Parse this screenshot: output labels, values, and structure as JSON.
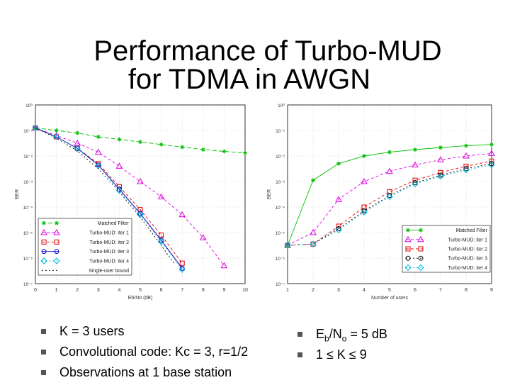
{
  "slide": {
    "title_line1": "Performance of Turbo-MUD",
    "title_line2": "for TDMA in AWGN"
  },
  "bullets_left": [
    "K = 3 users",
    "Convolutional code: Kc = 3, r=1/2",
    "Observations at 1 base station"
  ],
  "bullets_right": {
    "eb": "E",
    "eb_sub": "b",
    "slash": "/N",
    "no_sub": "o",
    "eq": " = 5 dB",
    "k_range": "1 ≤ K ≤ 9"
  },
  "chart_data": [
    {
      "type": "line",
      "ylog": true,
      "xlabel": "Eb/No (dB)",
      "ylabel": "BER",
      "xlim": [
        0,
        10
      ],
      "ylim_exp": [
        -7,
        0
      ],
      "xticks": [
        "0",
        "1",
        "2",
        "3",
        "4",
        "5",
        "6",
        "7",
        "8",
        "9",
        "10"
      ],
      "yticks": [
        "10⁰",
        "10⁻¹",
        "10⁻²",
        "10⁻³",
        "10⁻⁴",
        "10⁻⁵",
        "10⁻⁶",
        "10⁻⁷"
      ],
      "legend_position": "bottom-left",
      "series": [
        {
          "name": "Matched Filter",
          "color": "#00c000",
          "marker": "star",
          "dash": "6,3",
          "x": [
            0,
            1,
            2,
            3,
            4,
            5,
            6,
            7,
            8,
            9,
            10
          ],
          "y": [
            -0.9,
            -1.0,
            -1.1,
            -1.25,
            -1.35,
            -1.45,
            -1.55,
            -1.65,
            -1.75,
            -1.82,
            -1.88
          ]
        },
        {
          "name": "Turbo-MUD: iter 1",
          "color": "#e000e0",
          "marker": "triangle",
          "dash": "4,3",
          "x": [
            0,
            1,
            2,
            3,
            4,
            5,
            6,
            7,
            8,
            9
          ],
          "y": [
            -0.9,
            -1.2,
            -1.5,
            -1.85,
            -2.4,
            -3.0,
            -3.6,
            -4.3,
            -5.2,
            -6.3
          ]
        },
        {
          "name": "Turbo-MUD: iter 2",
          "color": "#e00000",
          "marker": "square",
          "dash": "4,3",
          "x": [
            0,
            1,
            2,
            3,
            4,
            5,
            6,
            7
          ],
          "y": [
            -0.9,
            -1.25,
            -1.7,
            -2.3,
            -3.2,
            -4.1,
            -5.1,
            -6.2
          ]
        },
        {
          "name": "Turbo-MUD: iter 3",
          "color": "#0000c0",
          "marker": "circle",
          "dash": "",
          "x": [
            0,
            1,
            2,
            3,
            4,
            5,
            6,
            7
          ],
          "y": [
            -0.9,
            -1.25,
            -1.7,
            -2.35,
            -3.3,
            -4.25,
            -5.3,
            -6.4
          ]
        },
        {
          "name": "Turbo-MUD: iter 4",
          "color": "#00b8e0",
          "marker": "diamond",
          "dash": "2,3",
          "x": [
            0,
            1,
            2,
            3,
            4,
            5,
            6,
            7
          ],
          "y": [
            -0.9,
            -1.25,
            -1.72,
            -2.38,
            -3.35,
            -4.3,
            -5.35,
            -6.45
          ]
        },
        {
          "name": "Single-user bound",
          "color": "#000000",
          "marker": "none",
          "dash": "2,3",
          "x": [
            0,
            1,
            2,
            3,
            4,
            5,
            6,
            6.6
          ],
          "y": [
            -0.9,
            -1.3,
            -1.8,
            -2.5,
            -3.4,
            -4.4,
            -5.5,
            -6.2
          ]
        }
      ]
    },
    {
      "type": "line",
      "ylog": true,
      "xlabel": "Number of users",
      "ylabel": "BER",
      "xlim": [
        1,
        9
      ],
      "ylim_exp": [
        -7,
        0
      ],
      "xticks": [
        "1",
        "2",
        "3",
        "4",
        "5",
        "6",
        "7",
        "8",
        "9"
      ],
      "yticks": [
        "10⁰",
        "10⁻¹",
        "10⁻²",
        "10⁻³",
        "10⁻⁴",
        "10⁻⁵",
        "10⁻⁶",
        "10⁻⁷"
      ],
      "legend_position": "bottom-right",
      "series": [
        {
          "name": "Matched Filter",
          "color": "#00c000",
          "marker": "star",
          "dash": "",
          "x": [
            1,
            2,
            3,
            4,
            5,
            6,
            7,
            8,
            9
          ],
          "y": [
            -5.5,
            -2.95,
            -2.3,
            -2.0,
            -1.85,
            -1.75,
            -1.67,
            -1.6,
            -1.55
          ]
        },
        {
          "name": "Turbo-MUD: iter 1",
          "color": "#e000e0",
          "marker": "triangle",
          "dash": "4,3",
          "x": [
            1,
            2,
            3,
            4,
            5,
            6,
            7,
            8,
            9
          ],
          "y": [
            -5.5,
            -5.0,
            -3.7,
            -3.0,
            -2.6,
            -2.35,
            -2.15,
            -2.0,
            -1.9
          ]
        },
        {
          "name": "Turbo-MUD: iter 2",
          "color": "#e00000",
          "marker": "square",
          "dash": "4,3",
          "x": [
            1,
            2,
            3,
            4,
            5,
            6,
            7,
            8,
            9
          ],
          "y": [
            -5.5,
            -5.45,
            -4.75,
            -4.0,
            -3.4,
            -2.95,
            -2.65,
            -2.4,
            -2.2
          ]
        },
        {
          "name": "Turbo-MUD: iter 3",
          "color": "#000000",
          "marker": "circle",
          "dash": "2,3",
          "x": [
            1,
            2,
            3,
            4,
            5,
            6,
            7,
            8,
            9
          ],
          "y": [
            -5.5,
            -5.45,
            -4.85,
            -4.15,
            -3.55,
            -3.05,
            -2.75,
            -2.5,
            -2.3
          ]
        },
        {
          "name": "Turbo-MUD: iter 4",
          "color": "#00b8e0",
          "marker": "diamond",
          "dash": "2,3",
          "x": [
            1,
            2,
            3,
            4,
            5,
            6,
            7,
            8,
            9
          ],
          "y": [
            -5.5,
            -5.45,
            -4.9,
            -4.2,
            -3.6,
            -3.1,
            -2.8,
            -2.55,
            -2.35
          ]
        }
      ]
    }
  ]
}
